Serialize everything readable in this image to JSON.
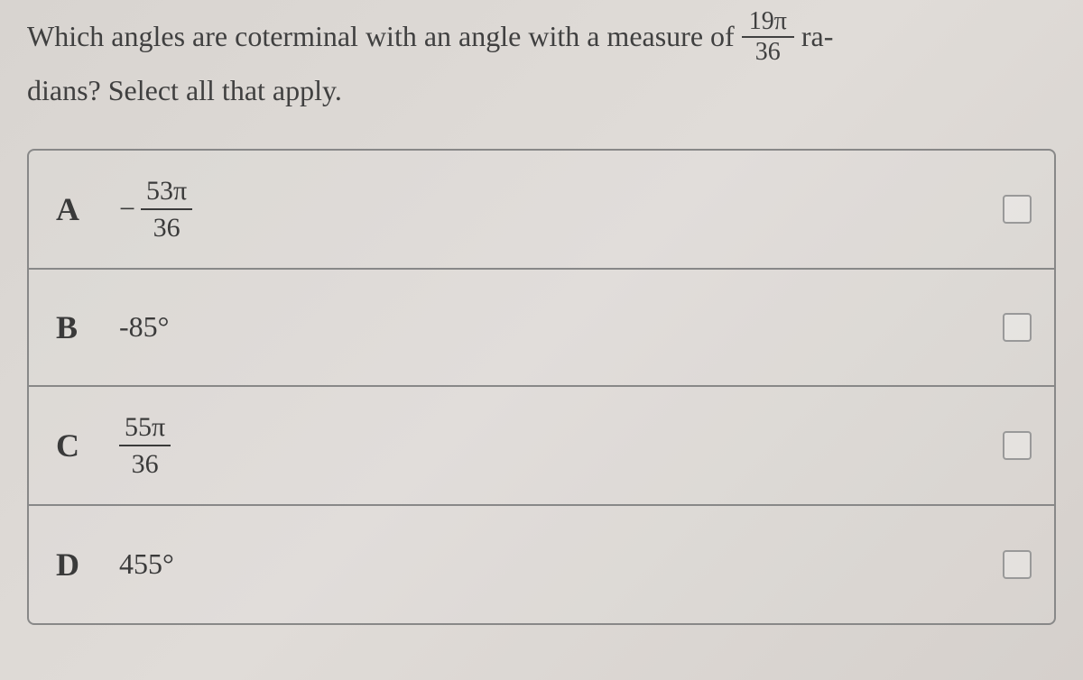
{
  "question": {
    "prefix": "Which angles are coterminal with an angle with a measure of",
    "fraction_num": "19π",
    "fraction_den": "36",
    "suffix1": "ra-",
    "line2": "dians? Select all that apply."
  },
  "options": [
    {
      "letter": "A",
      "type": "fraction",
      "negative": true,
      "num": "53π",
      "den": "36"
    },
    {
      "letter": "B",
      "type": "plain",
      "value": "-85°"
    },
    {
      "letter": "C",
      "type": "fraction",
      "negative": false,
      "num": "55π",
      "den": "36"
    },
    {
      "letter": "D",
      "type": "plain",
      "value": "455°"
    }
  ],
  "colors": {
    "text": "#3a3a3a",
    "border": "#888888",
    "background_start": "#d8d4d0",
    "background_end": "#d5d0cc"
  },
  "typography": {
    "question_fontsize": 32,
    "option_letter_fontsize": 36,
    "option_value_fontsize": 32,
    "fraction_fontsize": 30
  }
}
